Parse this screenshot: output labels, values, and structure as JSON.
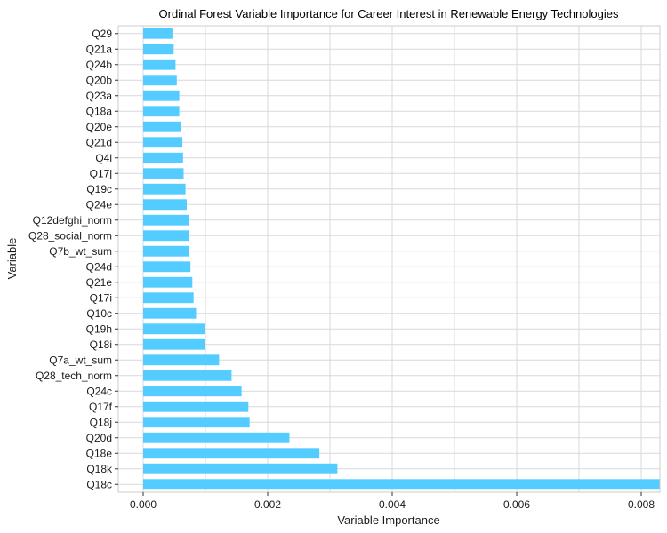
{
  "chart_data": {
    "type": "bar",
    "orientation": "horizontal",
    "title": "Ordinal Forest Variable Importance for Career Interest in Renewable Energy Technologies",
    "xlabel": "Variable Importance",
    "ylabel": "Variable",
    "xlim": [
      -0.0004,
      0.0083
    ],
    "xticks": [
      0.0,
      0.002,
      0.004,
      0.006,
      0.008
    ],
    "xtick_labels": [
      "0.000",
      "0.002",
      "0.004",
      "0.006",
      "0.008"
    ],
    "grid": true,
    "legend": "none",
    "bar_color": "#55ccff",
    "grid_color": "#d9d9d9",
    "categories": [
      "Q29",
      "Q21a",
      "Q24b",
      "Q20b",
      "Q23a",
      "Q18a",
      "Q20e",
      "Q21d",
      "Q4l",
      "Q17j",
      "Q19c",
      "Q24e",
      "Q12defghi_norm",
      "Q28_social_norm",
      "Q7b_wt_sum",
      "Q24d",
      "Q21e",
      "Q17i",
      "Q10c",
      "Q19h",
      "Q18i",
      "Q7a_wt_sum",
      "Q28_tech_norm",
      "Q24c",
      "Q17f",
      "Q18j",
      "Q20d",
      "Q18e",
      "Q18k",
      "Q18c"
    ],
    "values": [
      0.00047,
      0.00049,
      0.00052,
      0.00054,
      0.00058,
      0.00058,
      0.0006,
      0.00063,
      0.00064,
      0.00065,
      0.00068,
      0.0007,
      0.00073,
      0.00074,
      0.00074,
      0.00076,
      0.00079,
      0.00081,
      0.00085,
      0.001,
      0.001,
      0.00122,
      0.00142,
      0.00158,
      0.00169,
      0.00171,
      0.00235,
      0.00283,
      0.00312,
      0.0083
    ]
  }
}
